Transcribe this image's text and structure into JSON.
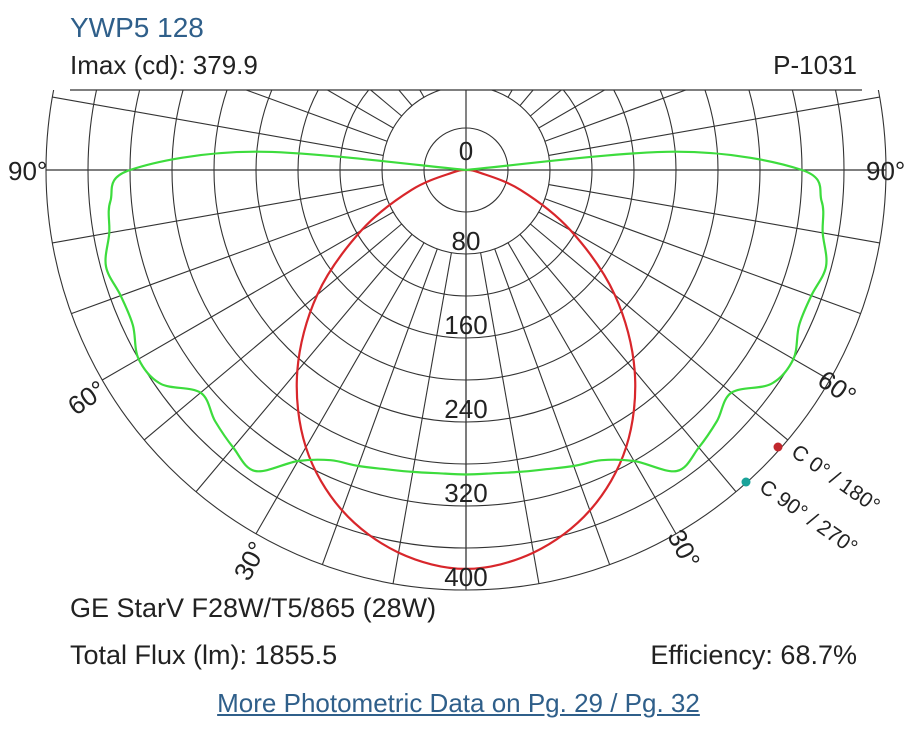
{
  "header": {
    "model": "YWP5 128",
    "imax": "Imax (cd): 379.9",
    "code": "P-1031"
  },
  "footer": {
    "lamp": "GE StarV F28W/T5/865 (28W)",
    "flux": "Total Flux (lm): 1855.5",
    "efficiency": "Efficiency: 68.7%",
    "link": "More Photometric Data on Pg. 29 / Pg. 32"
  },
  "chart_data": {
    "type": "polar",
    "angle_labels": [
      "90°",
      "90°",
      "60°",
      "60°",
      "30°",
      "30°"
    ],
    "radial_ticks": [
      0,
      80,
      160,
      240,
      320,
      400
    ],
    "radial_tick_labels": [
      "0",
      "80",
      "160",
      "240",
      "320",
      "400"
    ],
    "rmax": 400,
    "angular_grid_step_deg": 10,
    "series": [
      {
        "name": "C 0° / 180°",
        "color": "#d8262b",
        "angles_deg": [
          0,
          10,
          20,
          30,
          40,
          50,
          60,
          70,
          80,
          90
        ],
        "values": [
          379.9,
          370,
          345,
          305,
          250,
          185,
          115,
          55,
          12,
          0
        ],
        "symmetric": true
      },
      {
        "name": "C 90° / 270°",
        "color": "#3ddc3d",
        "angles_deg": [
          0,
          5,
          10,
          15,
          20,
          25,
          30,
          35,
          40,
          45,
          50,
          55,
          60,
          65,
          70,
          75,
          80,
          85,
          90,
          95,
          100
        ],
        "values": [
          290,
          290,
          292,
          295,
          300,
          305,
          320,
          350,
          345,
          338,
          330,
          355,
          360,
          350,
          350,
          355,
          345,
          340,
          320,
          200,
          0
        ],
        "symmetric": true
      }
    ],
    "legend": [
      "C 0° / 180°",
      "C 90° / 270°"
    ],
    "legend_placement": "bottom-right",
    "grid": true
  }
}
